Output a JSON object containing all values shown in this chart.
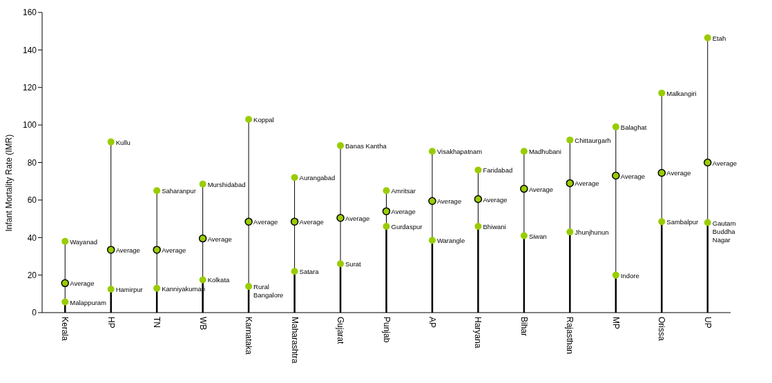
{
  "chart_data": {
    "type": "scatter",
    "ylabel": "Infant Mortality Rate (IMR)",
    "categories": [
      "Kerala",
      "HP",
      "TN",
      "WB",
      "Karnataka",
      "Maharashtra",
      "Gujarat",
      "Punjab",
      "AP",
      "Haryana",
      "Bihar",
      "Rajasthan",
      "MP",
      "Orissa",
      "UP"
    ],
    "ylim": [
      0,
      160
    ],
    "yticks": [
      0,
      20,
      40,
      60,
      80,
      100,
      120,
      140,
      160
    ],
    "legend": false,
    "marker": "circle",
    "series": [
      {
        "type": "lollipop",
        "color": "#99cc00",
        "values": [
          38,
          91,
          65,
          68.5,
          103,
          72,
          89,
          65,
          86,
          76,
          86,
          92,
          99,
          117,
          146.5
        ],
        "value_labels": [
          "Wayanad",
          "Kullu",
          "Saharanpur",
          "Murshidabad",
          "Koppal",
          "Aurangabad",
          "Banas Kantha",
          "Amritsar",
          "Visakhapatnam",
          "Faridabad",
          "Madhubani",
          "Chittaurgarh",
          "Balaghat",
          "Malkangiri",
          "Etah"
        ]
      },
      {
        "type": "lollipop",
        "color": "#99cc00",
        "values": [
          5.7,
          12.5,
          13,
          17.5,
          14,
          22,
          26,
          46,
          38.5,
          46,
          41,
          43,
          20,
          48.5,
          48
        ],
        "value_labels": [
          "Malappuram",
          "Hamirpur",
          "Kanniyakumari",
          "Kolkata",
          "Rural\nBangalore",
          "Satara",
          "Surat",
          "Gurdaspur",
          "Warangle",
          "Bhiwani",
          "Siwan",
          "Jhunjhunun",
          "Indore",
          "Sambalpur",
          "Gautam\nBuddha\nNagar"
        ]
      },
      {
        "color": "#99cc00",
        "values": [
          15.7,
          33.5,
          33.5,
          39.5,
          48.5,
          48.5,
          50.5,
          54,
          59.5,
          60.5,
          66,
          69,
          73,
          74.5,
          80
        ],
        "value_labels": [
          "Average",
          "Average",
          "Average",
          "Average",
          "Average",
          "Average",
          "Average",
          "Average",
          "Average",
          "Average",
          "Average",
          "Average",
          "Average",
          "Average",
          "Average"
        ]
      }
    ]
  }
}
